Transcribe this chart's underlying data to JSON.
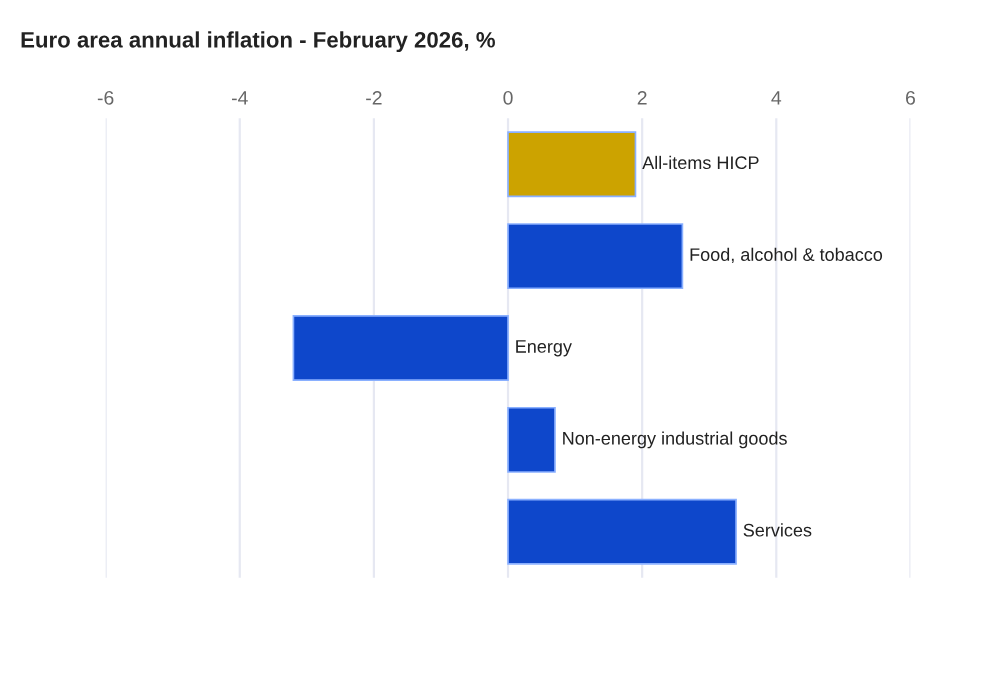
{
  "chart_data": {
    "type": "bar",
    "orientation": "horizontal",
    "title": "Euro area annual inflation - February 2026, %",
    "categories": [
      "All-items HICP",
      "Food, alcohol & tobacco",
      "Energy",
      "Non-energy industrial goods",
      "Services"
    ],
    "values": [
      1.9,
      2.6,
      -3.2,
      0.7,
      3.4
    ],
    "colors": [
      "#cca300",
      "#0e47cb",
      "#0e47cb",
      "#0e47cb",
      "#0e47cb"
    ],
    "xlim": [
      -6,
      6
    ],
    "xticks": [
      -6,
      -4,
      -2,
      0,
      2,
      4,
      6
    ],
    "grid": "x",
    "tick_labels": "x"
  }
}
